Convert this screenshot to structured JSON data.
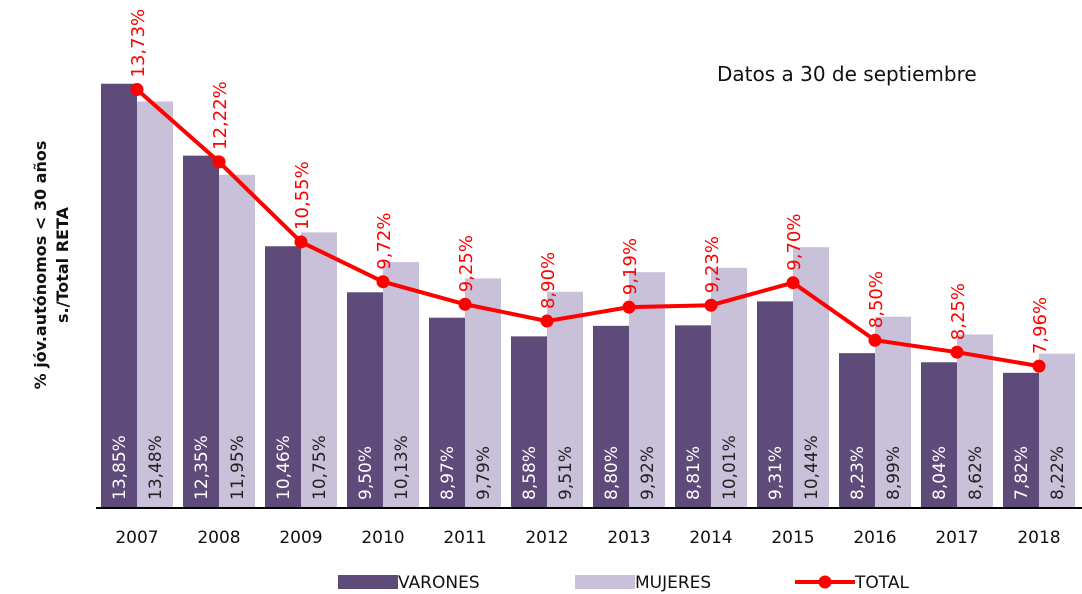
{
  "chart_data": {
    "type": "bar",
    "annotation": "Datos a 30 de septiembre",
    "y_label": [
      "% jóv.autónomos < 30 años",
      "s./Total RETA"
    ],
    "categories": [
      "2007",
      "2008",
      "2009",
      "2010",
      "2011",
      "2012",
      "2013",
      "2014",
      "2015",
      "2016",
      "2017",
      "2018"
    ],
    "ylim": [
      5,
      14.7
    ],
    "series": [
      {
        "name": "VARONES",
        "type": "bar",
        "color": "#5e4b7a",
        "values": [
          13.85,
          12.35,
          10.46,
          9.5,
          8.97,
          8.58,
          8.8,
          8.81,
          9.31,
          8.23,
          8.04,
          7.82
        ],
        "value_labels": [
          "13,85%",
          "12,35%",
          "10,46%",
          "9,50%",
          "8,97%",
          "8,58%",
          "8,80%",
          "8,81%",
          "9,31%",
          "8,23%",
          "8,04%",
          "7,82%"
        ]
      },
      {
        "name": "MUJERES",
        "type": "bar",
        "color": "#c9c0da",
        "values": [
          13.48,
          11.95,
          10.75,
          10.13,
          9.79,
          9.51,
          9.92,
          10.01,
          10.44,
          8.99,
          8.62,
          8.22
        ],
        "value_labels": [
          "13,48%",
          "11,95%",
          "10,75%",
          "10,13%",
          "9,79%",
          "9,51%",
          "9,92%",
          "10,01%",
          "10,44%",
          "8,99%",
          "8,62%",
          "8,22%"
        ]
      },
      {
        "name": "TOTAL",
        "type": "line",
        "color": "#ff0000",
        "values": [
          13.73,
          12.22,
          10.55,
          9.72,
          9.25,
          8.9,
          9.19,
          9.23,
          9.7,
          8.5,
          8.25,
          7.96
        ],
        "value_labels": [
          "13,73%",
          "12,22%",
          "10,55%",
          "9,72%",
          "9,25%",
          "8,90%",
          "9,19%",
          "9,23%",
          "9,70%",
          "8,50%",
          "8,25%",
          "7,96%"
        ]
      }
    ]
  }
}
